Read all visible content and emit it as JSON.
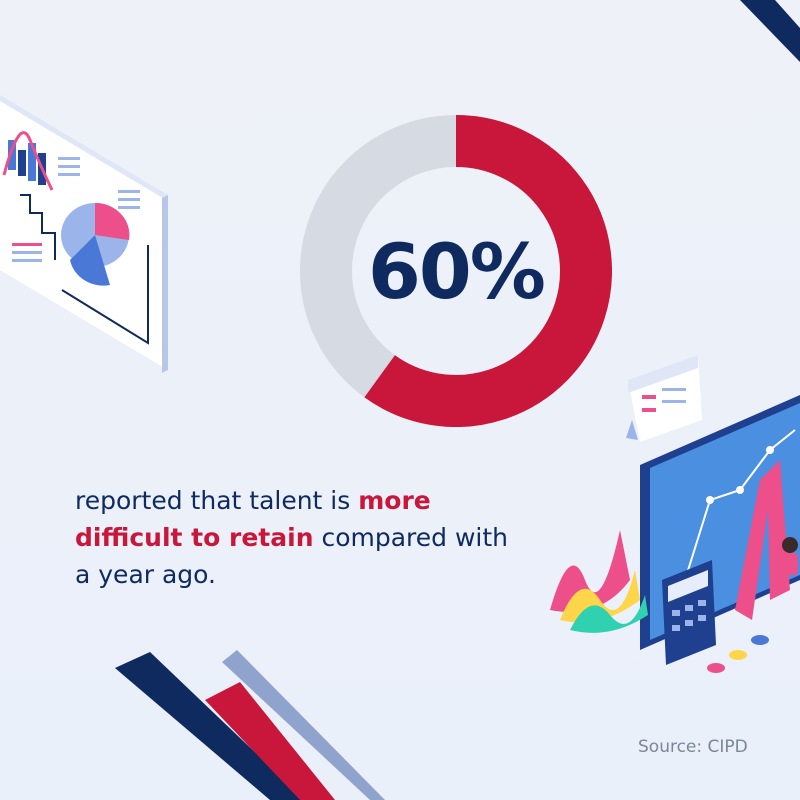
{
  "chart_data": {
    "type": "pie",
    "subtype": "donut",
    "value_label": "60%",
    "slices": [
      {
        "value": 60,
        "color": "#c8173a"
      },
      {
        "value": 40,
        "color": "#d6dae2"
      }
    ]
  },
  "caption": {
    "part1": "reported that talent is ",
    "highlight": "more difficult to retain",
    "part2": " compared with a year ago."
  },
  "source": "Source: CIPD",
  "colors": {
    "accent_red": "#c8173a",
    "navy": "#0f2a5e",
    "light_gray": "#d6dae2",
    "blue": "#4a78d6",
    "pink": "#ec4f8a"
  },
  "decorations": [
    "dashboard-illustration",
    "analytics-monitor-illustration",
    "calendar-icon",
    "calculator-icon",
    "decorative-stripes"
  ]
}
